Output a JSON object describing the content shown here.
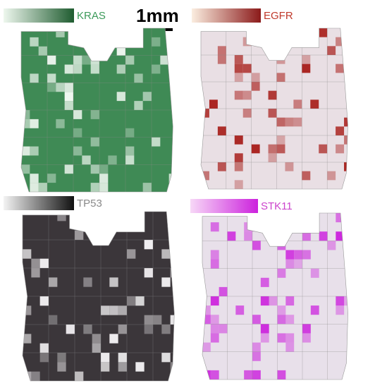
{
  "scale_bar": "1mm",
  "panels": [
    {
      "label": "KRAS",
      "label_color": "#3c9a5a",
      "gradient": [
        "#eef7ee",
        "#1f5c30"
      ],
      "tissue": "#3f8a55",
      "tile": "#f2f8f2"
    },
    {
      "label": "EGFR",
      "label_color": "#c0392b",
      "gradient": [
        "#fbeee0",
        "#8b1a1a"
      ],
      "tissue": "#e9dfe4",
      "tile": "#a8201c"
    },
    {
      "label": "TP53",
      "label_color": "#8a8a8a",
      "gradient": [
        "#f4f4f4",
        "#111111"
      ],
      "tissue": "#3b363a",
      "tile": "#f0eef0"
    },
    {
      "label": "STK11",
      "label_color": "#cc44cc",
      "gradient": [
        "#f7d8f7",
        "#cc22dd"
      ],
      "tissue": "#e8e0ea",
      "tile": "#cc22dd"
    }
  ]
}
